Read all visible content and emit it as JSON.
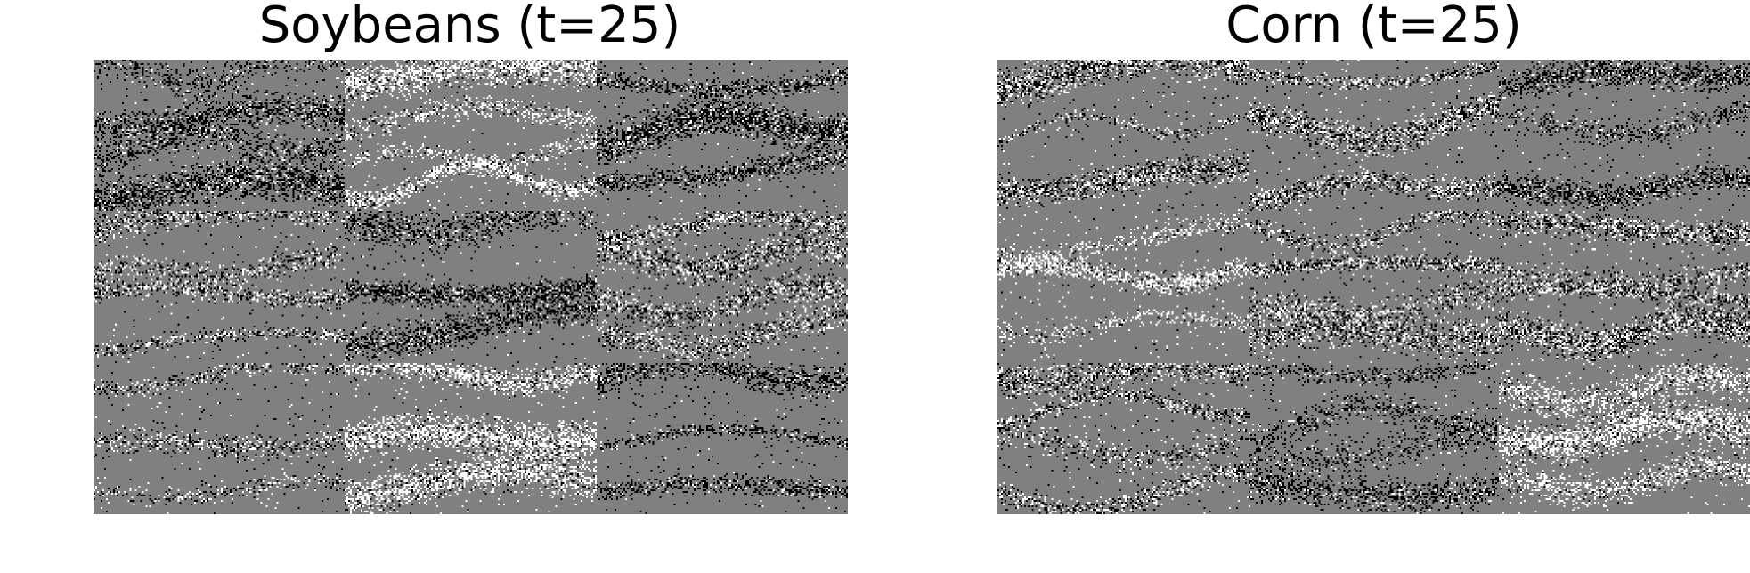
{
  "panels": [
    {
      "title": "Soybeans (t=25)",
      "tiles": [
        {
          "tone": "dark"
        },
        {
          "tone": "light"
        },
        {
          "tone": "dark"
        },
        {
          "tone": "mixed"
        },
        {
          "tone": "dark"
        },
        {
          "tone": "mixed"
        },
        {
          "tone": "mixed"
        },
        {
          "tone": "light"
        },
        {
          "tone": "dark"
        }
      ]
    },
    {
      "title": "Corn (t=25)",
      "tiles": [
        {
          "tone": "mixed"
        },
        {
          "tone": "mixed"
        },
        {
          "tone": "dark"
        },
        {
          "tone": "light"
        },
        {
          "tone": "mixed"
        },
        {
          "tone": "mixed"
        },
        {
          "tone": "mixed"
        },
        {
          "tone": "dark"
        },
        {
          "tone": "light"
        }
      ]
    }
  ],
  "colors": {
    "background": "#808080",
    "dark": "#000000",
    "light": "#ffffff"
  }
}
